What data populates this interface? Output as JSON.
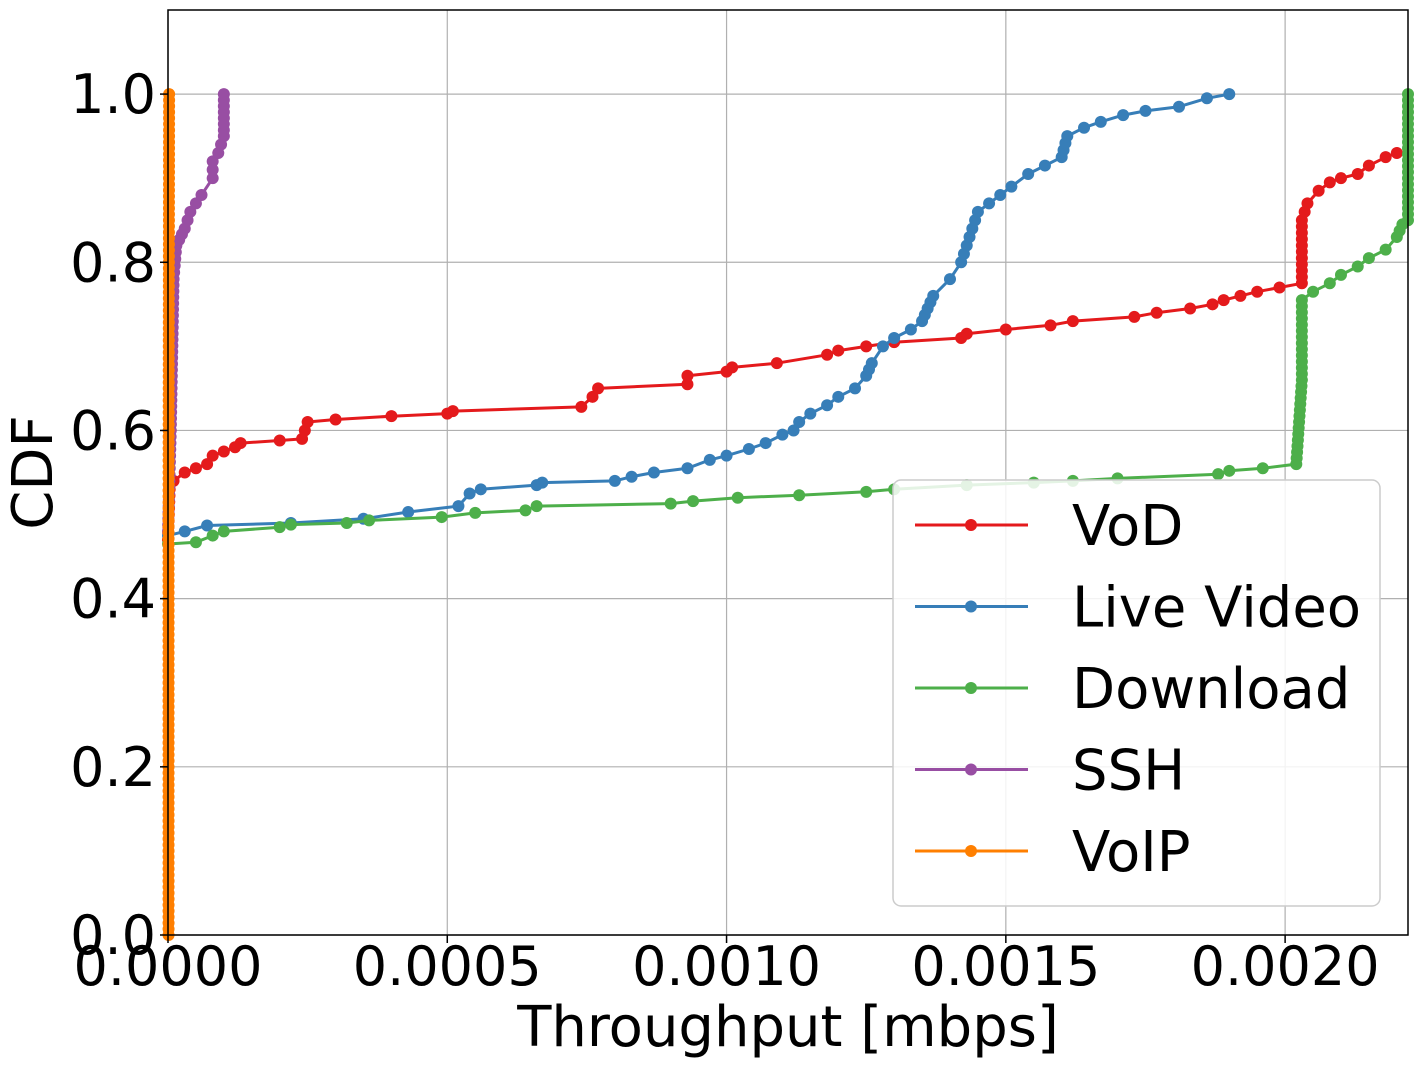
{
  "chart_data": {
    "type": "line",
    "xlabel": "Throughput [mbps]",
    "ylabel": "CDF",
    "xlim": [
      0,
      0.00222
    ],
    "ylim": [
      0,
      1.1
    ],
    "xticks": [
      0,
      0.0005,
      0.001,
      0.0015,
      0.002
    ],
    "xtick_labels": [
      "0.0000",
      "0.0005",
      "0.0010",
      "0.0015",
      "0.0020"
    ],
    "yticks": [
      0,
      0.2,
      0.4,
      0.6,
      0.8,
      1.0
    ],
    "ytick_labels": [
      "0.0",
      "0.2",
      "0.4",
      "0.6",
      "0.8",
      "1.0"
    ],
    "grid": true,
    "legend_position": "bottom-right",
    "series": [
      {
        "name": "VoD",
        "color": "#e41a1c",
        "points": [
          [
            0,
            0.47
          ],
          [
            3e-06,
            0.53
          ],
          [
            1e-05,
            0.54
          ],
          [
            3e-05,
            0.55
          ],
          [
            5e-05,
            0.555
          ],
          [
            7e-05,
            0.56
          ],
          [
            8e-05,
            0.57
          ],
          [
            0.0001,
            0.575
          ],
          [
            0.00012,
            0.58
          ],
          [
            0.00013,
            0.585
          ],
          [
            0.0002,
            0.588
          ],
          [
            0.00024,
            0.59
          ],
          [
            0.00025,
            0.61
          ],
          [
            0.0003,
            0.613
          ],
          [
            0.0004,
            0.617
          ],
          [
            0.0005,
            0.62
          ],
          [
            0.00051,
            0.623
          ],
          [
            0.00074,
            0.628
          ],
          [
            0.00076,
            0.64
          ],
          [
            0.00077,
            0.65
          ],
          [
            0.00093,
            0.655
          ],
          [
            0.00093,
            0.665
          ],
          [
            0.001,
            0.67
          ],
          [
            0.00101,
            0.675
          ],
          [
            0.00109,
            0.68
          ],
          [
            0.00118,
            0.69
          ],
          [
            0.0012,
            0.695
          ],
          [
            0.00125,
            0.7
          ],
          [
            0.0013,
            0.705
          ],
          [
            0.00142,
            0.71
          ],
          [
            0.00143,
            0.715
          ],
          [
            0.0015,
            0.72
          ],
          [
            0.00158,
            0.725
          ],
          [
            0.00162,
            0.73
          ],
          [
            0.00173,
            0.735
          ],
          [
            0.00177,
            0.74
          ],
          [
            0.00183,
            0.745
          ],
          [
            0.00187,
            0.75
          ],
          [
            0.00189,
            0.755
          ],
          [
            0.00192,
            0.76
          ],
          [
            0.00195,
            0.765
          ],
          [
            0.00199,
            0.77
          ],
          [
            0.00203,
            0.775
          ],
          [
            0.00203,
            0.85
          ],
          [
            0.00204,
            0.87
          ],
          [
            0.00206,
            0.885
          ],
          [
            0.00208,
            0.895
          ],
          [
            0.0021,
            0.9
          ],
          [
            0.00213,
            0.905
          ],
          [
            0.00215,
            0.915
          ],
          [
            0.00218,
            0.925
          ],
          [
            0.0022,
            0.93
          ]
        ]
      },
      {
        "name": "Live Video",
        "color": "#377eb8",
        "points": [
          [
            0,
            0.475
          ],
          [
            3e-05,
            0.48
          ],
          [
            7e-05,
            0.487
          ],
          [
            0.00022,
            0.49
          ],
          [
            0.00035,
            0.495
          ],
          [
            0.00043,
            0.503
          ],
          [
            0.00052,
            0.51
          ],
          [
            0.00054,
            0.525
          ],
          [
            0.00056,
            0.53
          ],
          [
            0.00066,
            0.535
          ],
          [
            0.00067,
            0.538
          ],
          [
            0.0008,
            0.54
          ],
          [
            0.00083,
            0.545
          ],
          [
            0.00087,
            0.55
          ],
          [
            0.00093,
            0.555
          ],
          [
            0.00097,
            0.565
          ],
          [
            0.001,
            0.57
          ],
          [
            0.00104,
            0.578
          ],
          [
            0.00107,
            0.585
          ],
          [
            0.0011,
            0.595
          ],
          [
            0.00112,
            0.6
          ],
          [
            0.00113,
            0.61
          ],
          [
            0.00115,
            0.62
          ],
          [
            0.00118,
            0.63
          ],
          [
            0.0012,
            0.64
          ],
          [
            0.00123,
            0.65
          ],
          [
            0.00125,
            0.665
          ],
          [
            0.00126,
            0.68
          ],
          [
            0.00128,
            0.7
          ],
          [
            0.0013,
            0.71
          ],
          [
            0.00133,
            0.72
          ],
          [
            0.00135,
            0.73
          ],
          [
            0.00137,
            0.76
          ],
          [
            0.0014,
            0.78
          ],
          [
            0.00142,
            0.8
          ],
          [
            0.00143,
            0.82
          ],
          [
            0.00144,
            0.84
          ],
          [
            0.00145,
            0.86
          ],
          [
            0.00147,
            0.87
          ],
          [
            0.00149,
            0.88
          ],
          [
            0.00151,
            0.89
          ],
          [
            0.00154,
            0.905
          ],
          [
            0.00157,
            0.915
          ],
          [
            0.0016,
            0.925
          ],
          [
            0.00161,
            0.95
          ],
          [
            0.00164,
            0.96
          ],
          [
            0.00167,
            0.967
          ],
          [
            0.00171,
            0.975
          ],
          [
            0.00175,
            0.98
          ],
          [
            0.00181,
            0.985
          ],
          [
            0.00186,
            0.995
          ],
          [
            0.0019,
            1.0
          ]
        ]
      },
      {
        "name": "Download",
        "color": "#4daf4a",
        "points": [
          [
            0,
            0.465
          ],
          [
            5e-05,
            0.467
          ],
          [
            8e-05,
            0.475
          ],
          [
            0.0001,
            0.48
          ],
          [
            0.0002,
            0.485
          ],
          [
            0.00022,
            0.488
          ],
          [
            0.00032,
            0.49
          ],
          [
            0.00036,
            0.493
          ],
          [
            0.00049,
            0.497
          ],
          [
            0.00055,
            0.502
          ],
          [
            0.00064,
            0.505
          ],
          [
            0.00066,
            0.51
          ],
          [
            0.0009,
            0.513
          ],
          [
            0.00094,
            0.516
          ],
          [
            0.00102,
            0.52
          ],
          [
            0.00113,
            0.523
          ],
          [
            0.00125,
            0.527
          ],
          [
            0.0013,
            0.53
          ],
          [
            0.00143,
            0.535
          ],
          [
            0.00155,
            0.538
          ],
          [
            0.00162,
            0.54
          ],
          [
            0.0017,
            0.543
          ],
          [
            0.00188,
            0.548
          ],
          [
            0.0019,
            0.552
          ],
          [
            0.00196,
            0.555
          ],
          [
            0.00202,
            0.56
          ],
          [
            0.00203,
            0.66
          ],
          [
            0.00203,
            0.755
          ],
          [
            0.00205,
            0.765
          ],
          [
            0.00208,
            0.775
          ],
          [
            0.0021,
            0.785
          ],
          [
            0.00213,
            0.795
          ],
          [
            0.00215,
            0.805
          ],
          [
            0.00218,
            0.815
          ],
          [
            0.0022,
            0.83
          ],
          [
            0.00221,
            0.845
          ],
          [
            0.00222,
            0.85
          ],
          [
            0.00222,
            1.0
          ]
        ]
      },
      {
        "name": "SSH",
        "color": "#984ea3",
        "points": [
          [
            0,
            0.48
          ],
          [
            5e-06,
            0.6
          ],
          [
            1e-05,
            0.78
          ],
          [
            1.5e-05,
            0.82
          ],
          [
            3e-05,
            0.84
          ],
          [
            4e-05,
            0.86
          ],
          [
            5e-05,
            0.87
          ],
          [
            6e-05,
            0.88
          ],
          [
            8e-05,
            0.9
          ],
          [
            8e-05,
            0.92
          ],
          [
            9e-05,
            0.93
          ],
          [
            0.0001,
            0.95
          ],
          [
            0.0001,
            1.0
          ]
        ]
      },
      {
        "name": "VoIP",
        "color": "#ff7f00",
        "points": [
          [
            1e-06,
            0.0
          ],
          [
            1e-06,
            0.5
          ],
          [
            2e-06,
            1.0
          ]
        ]
      }
    ]
  }
}
